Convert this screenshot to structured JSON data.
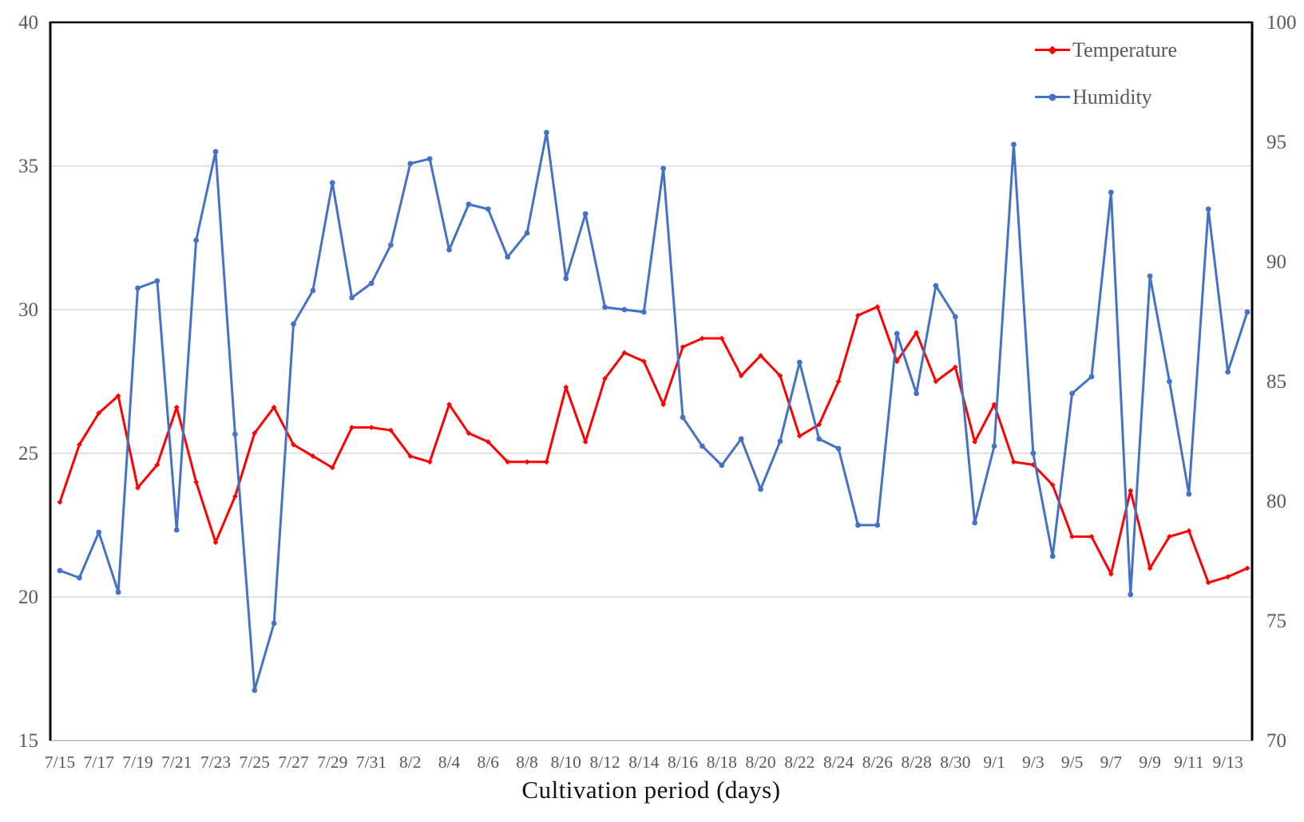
{
  "chart_data": {
    "type": "line",
    "title": "",
    "xlabel": "Cultivation period (days)",
    "categories": [
      "7/15",
      "7/16",
      "7/17",
      "7/18",
      "7/19",
      "7/20",
      "7/21",
      "7/22",
      "7/23",
      "7/24",
      "7/25",
      "7/26",
      "7/27",
      "7/28",
      "7/29",
      "7/30",
      "7/31",
      "8/1",
      "8/2",
      "8/3",
      "8/4",
      "8/5",
      "8/6",
      "8/7",
      "8/8",
      "8/9",
      "8/10",
      "8/11",
      "8/12",
      "8/13",
      "8/14",
      "8/15",
      "8/16",
      "8/17",
      "8/18",
      "8/19",
      "8/20",
      "8/21",
      "8/22",
      "8/23",
      "8/24",
      "8/25",
      "8/26",
      "8/27",
      "8/28",
      "8/29",
      "8/30",
      "8/31",
      "9/1",
      "9/2",
      "9/3",
      "9/4",
      "9/5",
      "9/6",
      "9/7",
      "9/8",
      "9/9",
      "9/10",
      "9/11",
      "9/12",
      "9/13",
      "9/14"
    ],
    "x_tick_labels_shown": [
      "7/15",
      "7/17",
      "7/19",
      "7/21",
      "7/23",
      "7/25",
      "7/27",
      "7/29",
      "7/31",
      "8/2",
      "8/4",
      "8/6",
      "8/8",
      "8/10",
      "8/12",
      "8/14",
      "8/16",
      "8/18",
      "8/20",
      "8/22",
      "8/24",
      "8/26",
      "8/28",
      "8/30",
      "9/1",
      "9/3",
      "9/5",
      "9/7",
      "9/9",
      "9/11",
      "9/13"
    ],
    "series": [
      {
        "name": "Temperature",
        "axis": "left",
        "color": "#FF0000",
        "marker": "diamond",
        "values": [
          23.3,
          25.3,
          26.4,
          27.0,
          23.8,
          24.6,
          26.6,
          24.0,
          21.9,
          23.5,
          25.7,
          26.6,
          25.3,
          24.9,
          24.5,
          25.9,
          25.9,
          25.8,
          24.9,
          24.7,
          26.7,
          25.7,
          25.4,
          24.7,
          24.7,
          24.7,
          27.3,
          25.4,
          27.6,
          28.5,
          28.2,
          26.7,
          28.7,
          29.0,
          29.0,
          27.7,
          28.4,
          27.7,
          25.6,
          26.0,
          27.5,
          29.8,
          30.1,
          28.2,
          29.2,
          27.5,
          28.0,
          25.4,
          26.7,
          24.7,
          24.6,
          23.9,
          22.1,
          22.1,
          20.8,
          23.7,
          21.0,
          22.1,
          22.3,
          20.5,
          20.7,
          21.0
        ]
      },
      {
        "name": "Humidity",
        "axis": "right",
        "color": "#4472C4",
        "marker": "circle",
        "values": [
          77.1,
          76.8,
          78.7,
          76.2,
          88.9,
          89.2,
          78.8,
          90.9,
          94.6,
          82.8,
          72.1,
          74.9,
          87.4,
          88.8,
          93.3,
          88.5,
          89.1,
          90.7,
          94.1,
          94.3,
          90.5,
          92.4,
          92.2,
          90.2,
          91.2,
          95.4,
          89.3,
          92.0,
          88.1,
          88.0,
          87.9,
          93.9,
          83.5,
          82.3,
          81.5,
          82.6,
          80.5,
          82.5,
          85.8,
          82.6,
          82.2,
          79.0,
          79.0,
          87.0,
          84.5,
          89.0,
          87.7,
          79.1,
          82.3,
          94.9,
          82.0,
          77.7,
          84.5,
          85.2,
          92.9,
          76.1,
          89.4,
          85.0,
          80.3,
          92.2,
          85.4,
          87.9
        ]
      }
    ],
    "left_axis": {
      "min": 15,
      "max": 40,
      "ticks": [
        "40",
        "35",
        "30",
        "25",
        "20",
        "15"
      ]
    },
    "right_axis": {
      "min": 70,
      "max": 100,
      "ticks": [
        "100",
        "95",
        "90",
        "85",
        "80",
        "75",
        "70"
      ]
    },
    "grid": true,
    "legend_position": "top-right"
  },
  "colors": {
    "temperature": "#FF0000",
    "humidity": "#4472C4",
    "tick_text": "#595959",
    "axis_title_text": "#111111",
    "gridline": "#D9D9D9",
    "plot_border": "#000000",
    "bottom_line": "#C9C9C9",
    "background": "#FFFFFF"
  }
}
